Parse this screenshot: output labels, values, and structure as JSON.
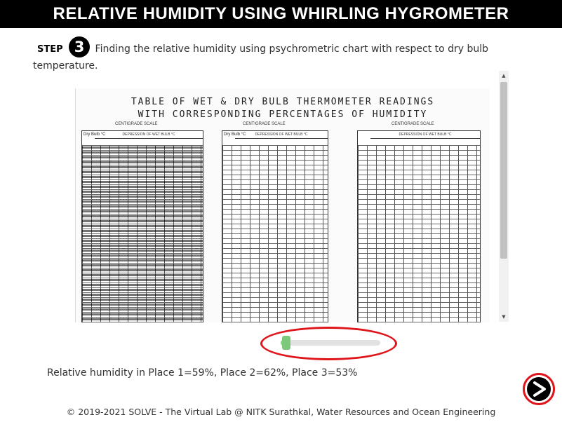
{
  "header": {
    "title": "RELATIVE HUMIDITY USING WHIRLING HYGROMETER"
  },
  "step": {
    "label": "STEP",
    "number": "3",
    "text": "Finding the relative humidity using psychrometric chart with respect to dry bulb temperature."
  },
  "chart_image": {
    "title_line1": "TABLE OF WET & DRY BULB THERMOMETER READINGS",
    "title_line2": "WITH CORRESPONDING PERCENTAGES OF HUMIDITY",
    "scale_label": "CENTIGRADE SCALE",
    "column_header": "DEPRESSION OF WET BULB °C",
    "row_header": "Dry Bulb °C"
  },
  "zoom_slider": {
    "value_fraction": 0.05
  },
  "result": {
    "text": "Relative humidity in Place 1=59%, Place 2=62%, Place 3=53%"
  },
  "next_button": {
    "icon": "next-arrow-icon"
  },
  "footer": {
    "text": "© 2019-2021 SOLVE - The Virtual Lab @ NITK Surathkal, Water Resources and Ocean Engineering"
  }
}
